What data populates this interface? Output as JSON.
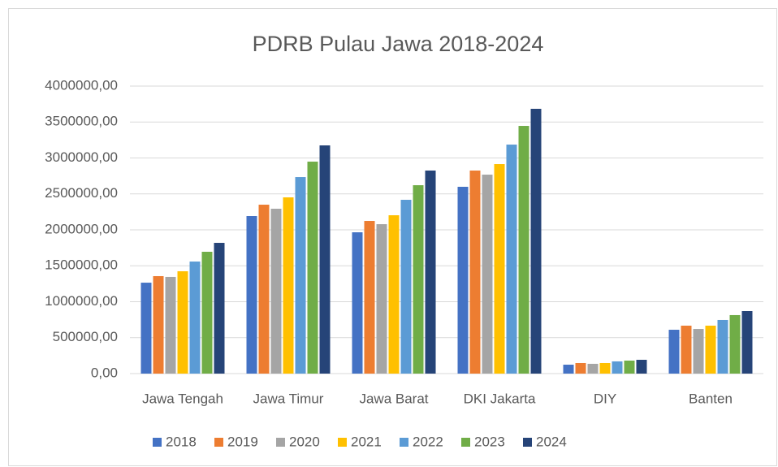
{
  "chart_data": {
    "type": "bar",
    "title": "PDRB Pulau Jawa 2018-2024",
    "categories": [
      "Jawa Tengah",
      "Jawa Timur",
      "Jawa Barat",
      "DKI Jakarta",
      "DIY",
      "Banten"
    ],
    "series": [
      {
        "name": "2018",
        "color": "#4472c4",
        "values": [
          1265000,
          2192000,
          1966000,
          2599000,
          124000,
          610000
        ]
      },
      {
        "name": "2019",
        "color": "#ed7d31",
        "values": [
          1356000,
          2350000,
          2124000,
          2825000,
          147000,
          667000
        ]
      },
      {
        "name": "2020",
        "color": "#a5a5a5",
        "values": [
          1345000,
          2294000,
          2079000,
          2768000,
          136000,
          621000
        ]
      },
      {
        "name": "2021",
        "color": "#ffc000",
        "values": [
          1424000,
          2452000,
          2203000,
          2915000,
          147000,
          667000
        ]
      },
      {
        "name": "2022",
        "color": "#5b9bd5",
        "values": [
          1559000,
          2734000,
          2418000,
          3186000,
          170000,
          746000
        ]
      },
      {
        "name": "2023",
        "color": "#70ad47",
        "values": [
          1695000,
          2949000,
          2621000,
          3446000,
          181000,
          814000
        ]
      },
      {
        "name": "2024",
        "color": "#264478",
        "values": [
          1819000,
          3175000,
          2825000,
          3684000,
          192000,
          870000
        ]
      }
    ],
    "ylim": [
      0,
      4000000
    ],
    "yticks": [
      {
        "value": 0,
        "label": "0,00"
      },
      {
        "value": 500000,
        "label": "500000,00"
      },
      {
        "value": 1000000,
        "label": "1000000,00"
      },
      {
        "value": 1500000,
        "label": "1500000,00"
      },
      {
        "value": 2000000,
        "label": "2000000,00"
      },
      {
        "value": 2500000,
        "label": "2500000,00"
      },
      {
        "value": 3000000,
        "label": "3000000,00"
      },
      {
        "value": 3500000,
        "label": "3500000,00"
      },
      {
        "value": 4000000,
        "label": "4000000,00"
      }
    ],
    "grid": true,
    "legend": "bottom"
  }
}
